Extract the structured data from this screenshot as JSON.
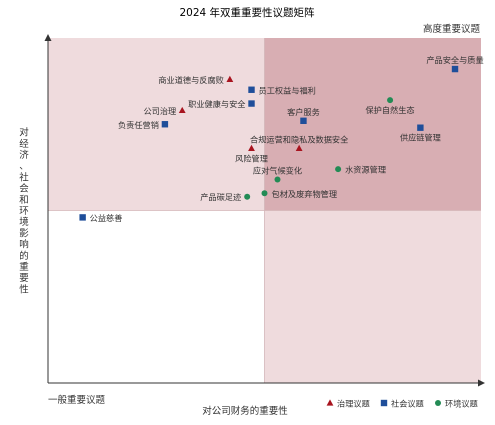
{
  "chart_data": {
    "type": "scatter",
    "title": "2024 年双重重要性议题矩阵",
    "xlabel": "对公司财务的重要性",
    "ylabel": "对经济、社会和环境影响的重要性",
    "corner_high": "高度重要议题",
    "corner_low": "一般重要议题",
    "xlim": [
      0,
      100
    ],
    "ylim": [
      0,
      100
    ],
    "threshold": {
      "x": 50,
      "y": 50
    },
    "colors": {
      "governance": "#a8141f",
      "social": "#1f4e9a",
      "environment": "#238b55",
      "quadrant_high": "#d8aeb3",
      "quadrant_mid": "#efdbdd",
      "grid_line": "#d4b6b9",
      "axis": "#333333",
      "title": "#a8141f"
    },
    "series": [
      {
        "key": "governance",
        "name": "治理议题",
        "marker": "triangle",
        "points": [
          {
            "label": "商业道德与反腐败",
            "x": 42,
            "y": 88,
            "anchor": "end"
          },
          {
            "label": "公司治理",
            "x": 31,
            "y": 79,
            "anchor": "end"
          },
          {
            "label": "风险管理",
            "x": 47,
            "y": 68,
            "anchor": "middle-below"
          },
          {
            "label": "合规运营和隐私及数据安全",
            "x": 58,
            "y": 68,
            "anchor": "middle-above"
          }
        ]
      },
      {
        "key": "social",
        "name": "社会议题",
        "marker": "square",
        "points": [
          {
            "label": "员工权益与福利",
            "x": 47,
            "y": 85,
            "anchor": "start"
          },
          {
            "label": "职业健康与安全",
            "x": 47,
            "y": 81,
            "anchor": "end"
          },
          {
            "label": "负责任营销",
            "x": 27,
            "y": 75,
            "anchor": "end"
          },
          {
            "label": "客户服务",
            "x": 59,
            "y": 76,
            "anchor": "middle-above"
          },
          {
            "label": "供应链管理",
            "x": 86,
            "y": 74,
            "anchor": "middle-below"
          },
          {
            "label": "产品安全与质量",
            "x": 94,
            "y": 91,
            "anchor": "middle-above"
          },
          {
            "label": "公益慈善",
            "x": 8,
            "y": 48,
            "anchor": "start"
          }
        ]
      },
      {
        "key": "environment",
        "name": "环境议题",
        "marker": "circle",
        "points": [
          {
            "label": "保护自然生态",
            "x": 79,
            "y": 82,
            "anchor": "middle-below"
          },
          {
            "label": "水资源管理",
            "x": 67,
            "y": 62,
            "anchor": "start"
          },
          {
            "label": "应对气候变化",
            "x": 53,
            "y": 59,
            "anchor": "middle-above"
          },
          {
            "label": "产品碳足迹",
            "x": 46,
            "y": 54,
            "anchor": "end"
          },
          {
            "label": "包材及废弃物管理",
            "x": 50,
            "y": 55,
            "anchor": "start"
          }
        ]
      }
    ],
    "legend": {
      "position": "bottom-right",
      "items": [
        {
          "key": "governance",
          "label": "治理议题",
          "marker": "triangle"
        },
        {
          "key": "social",
          "label": "社会议题",
          "marker": "square"
        },
        {
          "key": "environment",
          "label": "环境议题",
          "marker": "circle"
        }
      ]
    }
  }
}
